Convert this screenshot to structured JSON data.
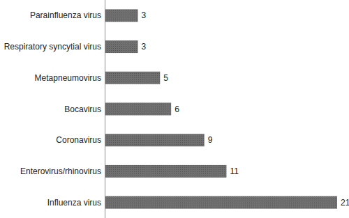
{
  "chart_data": {
    "type": "bar",
    "orientation": "horizontal",
    "categories": [
      "Parainfluenza virus",
      "Respiratory syncytial virus",
      "Metapneumovirus",
      "Bocavirus",
      "Coronavirus",
      "Enterovirus/rhinovirus",
      "Influenza virus"
    ],
    "values": [
      3,
      3,
      5,
      6,
      9,
      11,
      21
    ],
    "color": "#6f6f6f",
    "xlim": [
      0,
      21
    ],
    "data_labels": true,
    "tick_labels": "y",
    "grid": false
  }
}
